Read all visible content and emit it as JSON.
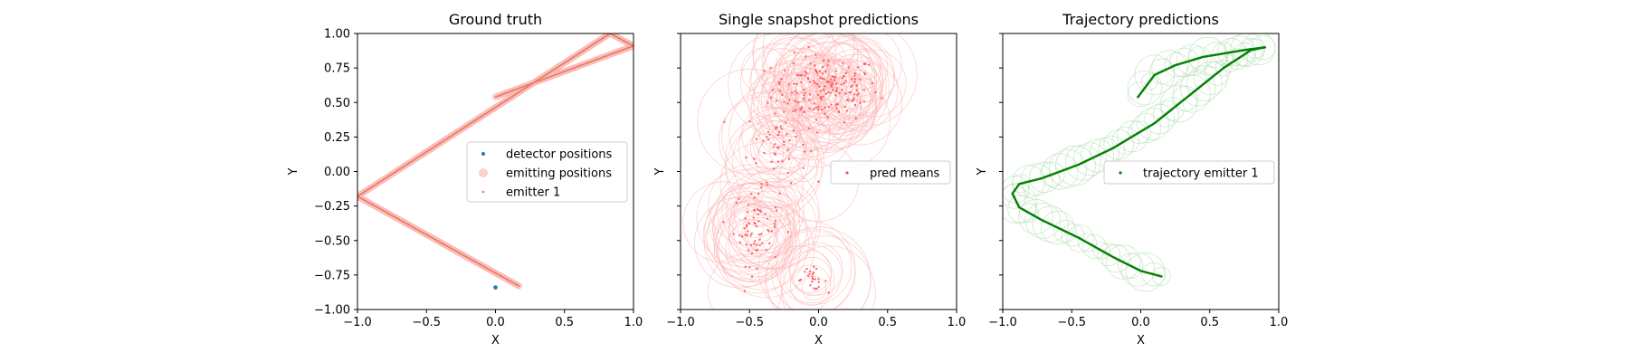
{
  "chart_data": [
    {
      "type": "scatter",
      "title": "Ground truth",
      "xlabel": "X",
      "ylabel": "Y",
      "xlim": [
        -1.0,
        1.0
      ],
      "ylim": [
        -1.0,
        1.0
      ],
      "xticks": [
        "−1.0",
        "−0.5",
        "0.0",
        "0.5",
        "1.0"
      ],
      "yticks": [
        "1.00",
        "0.75",
        "0.50",
        "0.25",
        "0.00",
        "−0.25",
        "−0.50",
        "−0.75",
        "−1.00"
      ],
      "legend_position": "center-right",
      "legend": [
        "detector positions",
        "emitting positions",
        "emitter 1"
      ],
      "series": [
        {
          "name": "detector positions",
          "color": "#1f77b4",
          "points": [
            [
              0.0,
              -0.84
            ]
          ]
        },
        {
          "name": "emitting positions",
          "color": "#ffaaaa",
          "path": [
            [
              0.17,
              -0.83
            ],
            [
              -1.0,
              -0.18
            ],
            [
              0.83,
              1.0
            ],
            [
              1.0,
              0.91
            ],
            [
              0.0,
              0.54
            ]
          ]
        },
        {
          "name": "emitter 1",
          "color": "#e08060",
          "path": [
            [
              0.17,
              -0.83
            ],
            [
              -1.0,
              -0.18
            ],
            [
              0.83,
              1.0
            ],
            [
              1.0,
              0.91
            ],
            [
              0.0,
              0.54
            ]
          ]
        }
      ]
    },
    {
      "type": "scatter",
      "title": "Single snapshot predictions",
      "xlabel": "X",
      "ylabel": "Y",
      "xlim": [
        -1.0,
        1.0
      ],
      "ylim": [
        -1.0,
        1.0
      ],
      "xticks": [
        "−1.0",
        "−0.5",
        "0.0",
        "0.5",
        "1.0"
      ],
      "legend_position": "center-right",
      "legend": [
        "pred means"
      ],
      "series": [
        {
          "name": "pred means",
          "color": "#ff5555",
          "clusters": [
            {
              "center": [
                0.05,
                0.6
              ],
              "spread": [
                0.35,
                0.22
              ],
              "count": 170
            },
            {
              "center": [
                -0.3,
                0.2
              ],
              "spread": [
                0.2,
                0.25
              ],
              "count": 50
            },
            {
              "center": [
                -0.45,
                -0.4
              ],
              "spread": [
                0.15,
                0.25
              ],
              "count": 70
            },
            {
              "center": [
                -0.05,
                -0.78
              ],
              "spread": [
                0.1,
                0.07
              ],
              "count": 25
            }
          ],
          "circle_radius_range": [
            0.08,
            0.38
          ]
        }
      ]
    },
    {
      "type": "scatter",
      "title": "Trajectory predictions",
      "xlabel": "X",
      "ylabel": "Y",
      "xlim": [
        -1.0,
        1.0
      ],
      "ylim": [
        -1.0,
        1.0
      ],
      "xticks": [
        "−1.0",
        "−0.5",
        "0.0",
        "0.5",
        "1.0"
      ],
      "legend_position": "center-right",
      "legend": [
        "trajectory emitter 1"
      ],
      "series": [
        {
          "name": "trajectory emitter 1",
          "color": "#008000",
          "path": [
            [
              0.15,
              -0.76
            ],
            [
              0.0,
              -0.72
            ],
            [
              -0.2,
              -0.62
            ],
            [
              -0.45,
              -0.48
            ],
            [
              -0.72,
              -0.35
            ],
            [
              -0.88,
              -0.26
            ],
            [
              -0.93,
              -0.16
            ],
            [
              -0.88,
              -0.09
            ],
            [
              -0.72,
              -0.05
            ],
            [
              -0.45,
              0.05
            ],
            [
              -0.2,
              0.17
            ],
            [
              0.1,
              0.35
            ],
            [
              0.35,
              0.55
            ],
            [
              0.6,
              0.75
            ],
            [
              0.8,
              0.88
            ],
            [
              0.9,
              0.9
            ],
            [
              0.75,
              0.88
            ],
            [
              0.45,
              0.83
            ],
            [
              0.25,
              0.77
            ],
            [
              0.1,
              0.7
            ],
            [
              -0.02,
              0.54
            ]
          ]
        }
      ]
    }
  ]
}
